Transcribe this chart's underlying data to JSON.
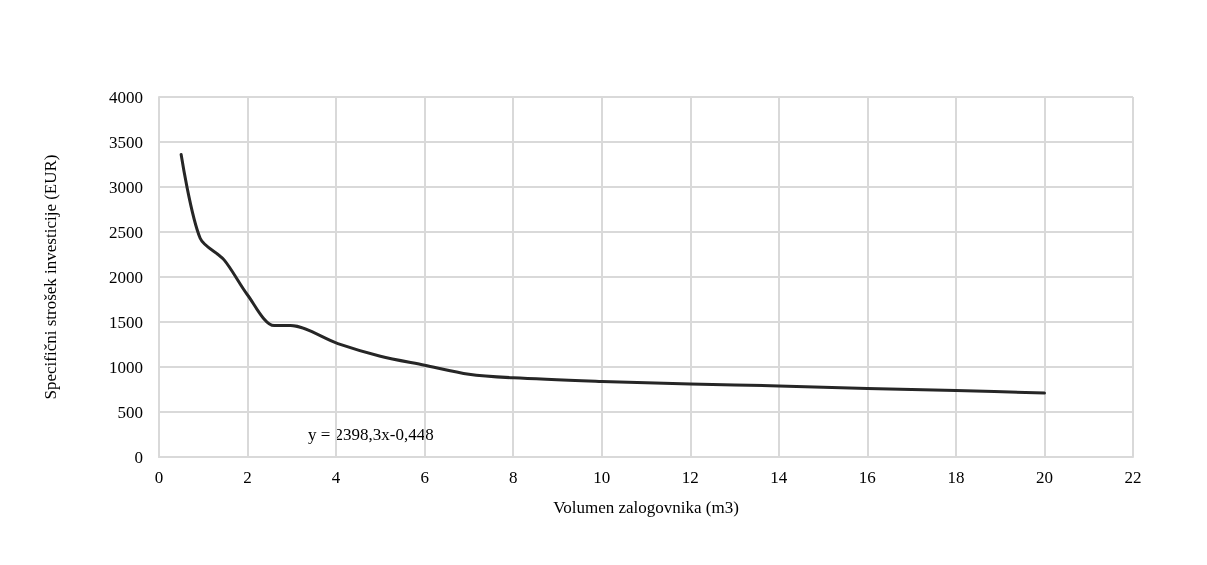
{
  "chart_data": {
    "type": "line",
    "xlabel": "Volumen zalogovnika (m3)",
    "ylabel": "Specifični strošek investicije (EUR)",
    "annotations": [
      "y = 2398,3x-0,448"
    ],
    "xlim": [
      0,
      22
    ],
    "xticks": [
      0,
      2,
      4,
      6,
      8,
      10,
      12,
      14,
      16,
      18,
      20,
      22
    ],
    "ylim": [
      0,
      4000
    ],
    "yticks": [
      0,
      500,
      1000,
      1500,
      2000,
      2500,
      3000,
      3500,
      4000
    ],
    "grid": true,
    "marker": "none",
    "line_style": "solid",
    "series": [
      {
        "color": "#262626",
        "x": [
          0.5,
          0.93,
          1.47,
          2,
          2.6,
          2.97,
          4.04,
          5,
          6,
          7,
          8,
          10,
          12,
          14,
          16,
          18,
          20
        ],
        "values": [
          3360,
          2430,
          2190,
          1800,
          1460,
          1460,
          1260,
          1120,
          1020,
          920,
          880,
          840,
          810,
          790,
          760,
          740,
          710
        ]
      }
    ]
  }
}
